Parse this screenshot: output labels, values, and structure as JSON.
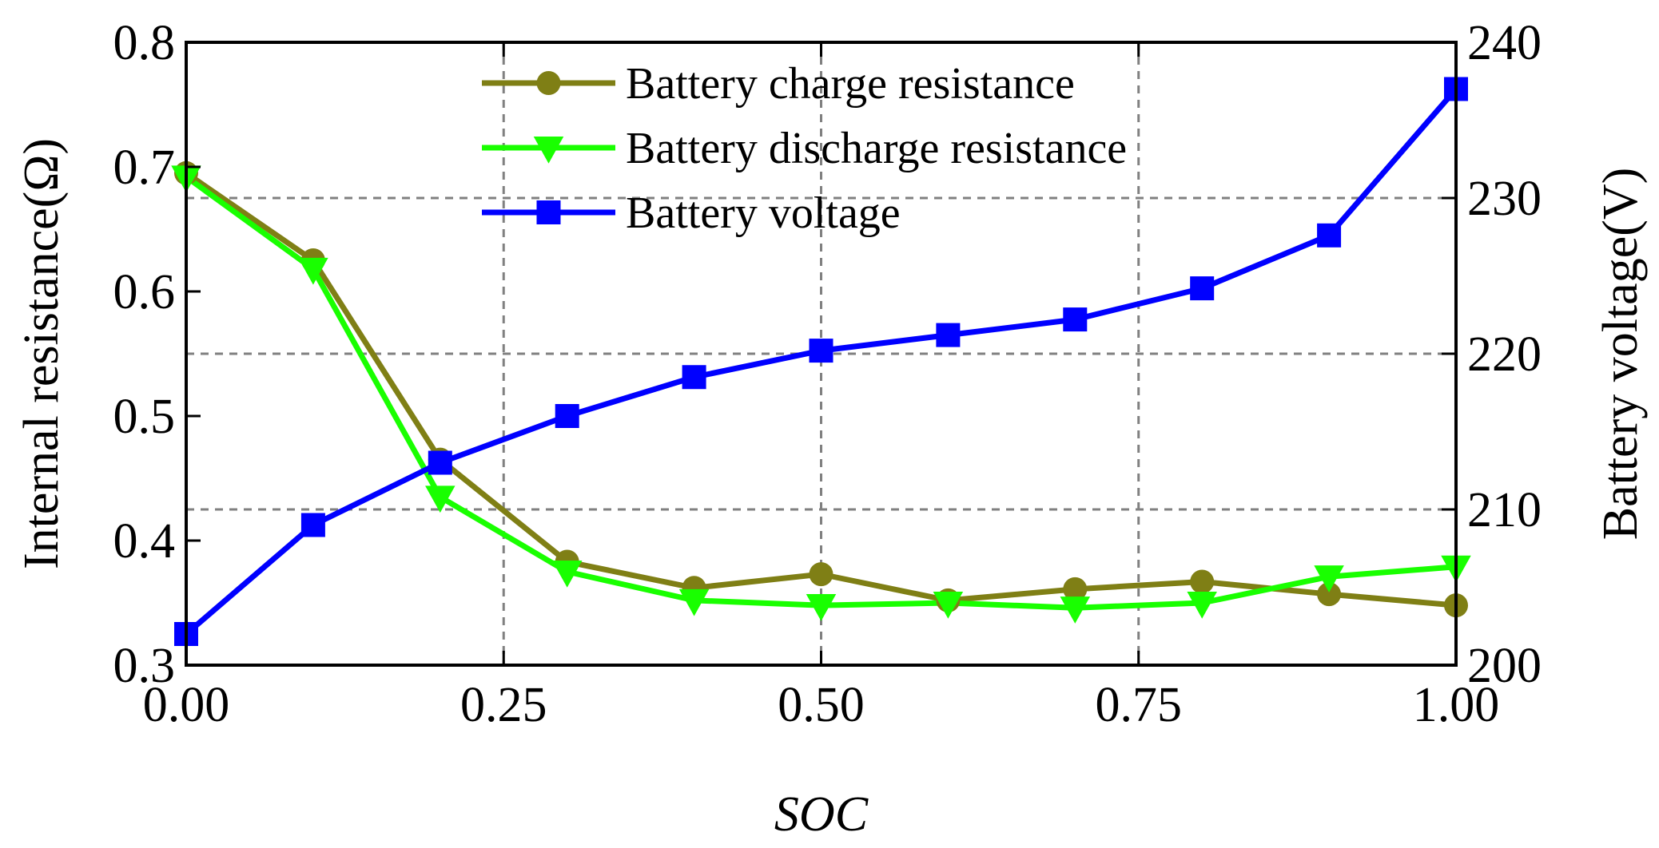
{
  "chart_data": {
    "type": "line",
    "title": "",
    "xlabel": "SOC",
    "ylabel_left": "Internal resistance(Ω)",
    "ylabel_right": "Battery voltage(V)",
    "x": [
      0,
      0.1,
      0.2,
      0.3,
      0.4,
      0.5,
      0.6,
      0.7,
      0.8,
      0.9,
      1.0
    ],
    "xlim": [
      0,
      1
    ],
    "ylim_left": [
      0.3,
      0.8
    ],
    "ylim_right": [
      200,
      240
    ],
    "x_ticks": [
      0,
      0.25,
      0.5,
      0.75,
      1.0
    ],
    "x_tick_labels": [
      "0.00",
      "0.25",
      "0.50",
      "0.75",
      "1.00"
    ],
    "y_left_ticks": [
      0.3,
      0.4,
      0.5,
      0.6,
      0.7,
      0.8
    ],
    "y_left_tick_labels": [
      "0.3",
      "0.4",
      "0.5",
      "0.6",
      "0.7",
      "0.8"
    ],
    "y_right_ticks": [
      200,
      210,
      220,
      230,
      240
    ],
    "y_right_tick_labels": [
      "200",
      "210",
      "220",
      "230",
      "240"
    ],
    "grid": true,
    "legend_position": "top-center",
    "series": [
      {
        "name": "Battery charge resistance",
        "axis": "left",
        "marker": "circle",
        "color": "#7f7f15",
        "values": [
          0.695,
          0.625,
          0.465,
          0.383,
          0.362,
          0.373,
          0.352,
          0.361,
          0.367,
          0.357,
          0.348
        ]
      },
      {
        "name": "Battery discharge resistance",
        "axis": "left",
        "marker": "triangle-down",
        "color": "#19ff00",
        "values": [
          0.692,
          0.618,
          0.435,
          0.375,
          0.352,
          0.348,
          0.35,
          0.346,
          0.35,
          0.371,
          0.379
        ]
      },
      {
        "name": "Battery voltage",
        "axis": "right",
        "marker": "square",
        "color": "#0000ff",
        "values": [
          202,
          209,
          213,
          216,
          218.5,
          220.2,
          221.2,
          222.2,
          224.2,
          227.6,
          237
        ]
      }
    ]
  }
}
